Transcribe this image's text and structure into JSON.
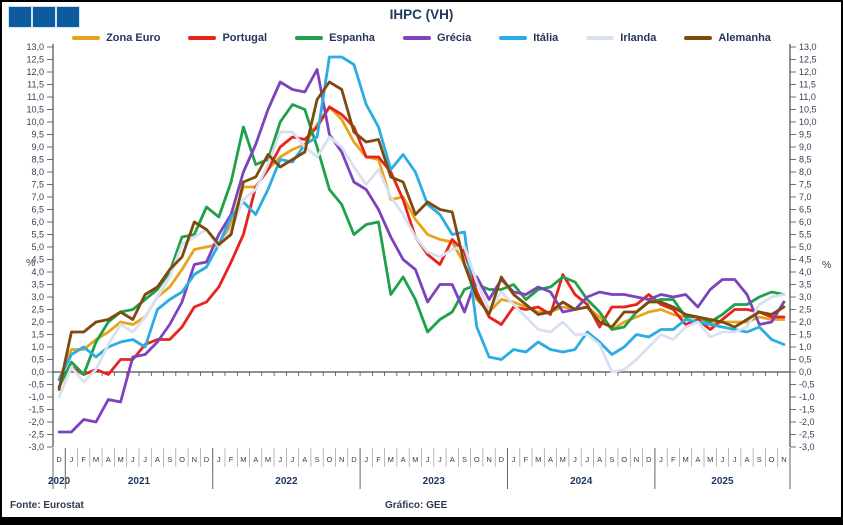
{
  "logo": {
    "bars": 3,
    "bar_color": "#0E5A9E",
    "gap_color": "#CDE4F2"
  },
  "footer": {
    "source": "Fonte: Eurostat",
    "credit": "Gráfico: GEE"
  },
  "chart_data": {
    "type": "line",
    "title": "IHPC (VH)",
    "ylabel_left": "%",
    "ylabel_right": "%",
    "ylim": [
      -3.0,
      13.0
    ],
    "ytick_step": 0.5,
    "grid": false,
    "legend_position": "top",
    "ytick_labels": [
      "13,0",
      "12,5",
      "12,0",
      "11,5",
      "11,0",
      "10,5",
      "10,0",
      "9,5",
      "9,0",
      "8,5",
      "8,0",
      "7,5",
      "7,0",
      "6,5",
      "6,0",
      "5,5",
      "5,0",
      "4,5",
      "4,0",
      "3,5",
      "3,0",
      "2,5",
      "2,0",
      "1,5",
      "1,0",
      "0,5",
      "0,0",
      "-0,5",
      "-1,0",
      "-1,5",
      "-2,0",
      "-2,5",
      "-3,0"
    ],
    "x_months": [
      "D",
      "J",
      "F",
      "M",
      "A",
      "M",
      "J",
      "J",
      "A",
      "S",
      "O",
      "N",
      "D",
      "J",
      "F",
      "M",
      "A",
      "M",
      "J",
      "J",
      "A",
      "S",
      "O",
      "N",
      "D",
      "J",
      "F",
      "M",
      "A",
      "M",
      "J",
      "J",
      "A",
      "S",
      "O",
      "N",
      "D",
      "J",
      "F",
      "M",
      "A",
      "M",
      "J",
      "J",
      "A",
      "S",
      "O",
      "N",
      "D",
      "J",
      "F",
      "M",
      "A",
      "M",
      "J",
      "J",
      "A",
      "S",
      "O",
      "N"
    ],
    "x_years": [
      {
        "label": "2020",
        "months": 1
      },
      {
        "label": "2021",
        "months": 12
      },
      {
        "label": "2022",
        "months": 12
      },
      {
        "label": "2023",
        "months": 12
      },
      {
        "label": "2024",
        "months": 12
      },
      {
        "label": "2025",
        "months": 11
      }
    ],
    "series": [
      {
        "name": "Zona Euro",
        "color": "#E8A51B",
        "values": [
          -0.3,
          0.9,
          0.9,
          1.3,
          1.6,
          2.0,
          1.9,
          2.2,
          3.0,
          3.4,
          4.1,
          4.9,
          5.0,
          5.1,
          5.9,
          7.4,
          7.4,
          8.1,
          8.6,
          8.9,
          9.1,
          9.9,
          10.6,
          10.1,
          9.2,
          8.6,
          8.5,
          6.9,
          7.0,
          6.1,
          5.5,
          5.3,
          5.2,
          4.3,
          2.9,
          2.4,
          2.9,
          2.8,
          2.6,
          2.4,
          2.4,
          2.6,
          2.5,
          2.6,
          2.2,
          1.7,
          2.0,
          2.2,
          2.4,
          2.5,
          2.3,
          2.2,
          2.2,
          1.9,
          2.0,
          2.0,
          2.0,
          2.2,
          2.1,
          2.1
        ]
      },
      {
        "name": "Portugal",
        "color": "#E8231E",
        "values": [
          -0.3,
          0.2,
          -0.1,
          0.1,
          -0.1,
          0.5,
          0.5,
          1.1,
          1.3,
          1.3,
          1.8,
          2.6,
          2.8,
          3.4,
          4.4,
          5.5,
          7.4,
          8.1,
          9.0,
          9.4,
          9.3,
          9.8,
          10.6,
          10.3,
          9.8,
          8.6,
          8.6,
          8.0,
          6.9,
          5.4,
          4.7,
          4.3,
          5.3,
          4.8,
          3.2,
          2.2,
          1.9,
          2.6,
          2.5,
          2.6,
          2.3,
          3.9,
          3.1,
          2.7,
          1.8,
          2.6,
          2.6,
          2.7,
          3.1,
          2.7,
          2.5,
          1.9,
          2.1,
          1.7,
          2.1,
          2.5,
          2.5,
          2.4,
          2.2,
          2.2
        ]
      },
      {
        "name": "Espanha",
        "color": "#1FA04B",
        "values": [
          -0.6,
          0.4,
          -0.1,
          1.2,
          2.0,
          2.4,
          2.5,
          2.9,
          3.3,
          4.0,
          5.4,
          5.5,
          6.6,
          6.2,
          7.6,
          9.8,
          8.3,
          8.5,
          10.0,
          10.7,
          10.5,
          9.0,
          7.3,
          6.7,
          5.5,
          5.9,
          6.0,
          3.1,
          3.8,
          2.9,
          1.6,
          2.1,
          2.4,
          3.3,
          3.5,
          3.3,
          3.3,
          3.5,
          2.9,
          3.3,
          3.4,
          3.8,
          3.6,
          2.9,
          2.4,
          1.7,
          1.8,
          2.4,
          2.8,
          2.9,
          2.9,
          2.2,
          2.2,
          2.0,
          2.3,
          2.7,
          2.7,
          3.0,
          3.2,
          3.1
        ]
      },
      {
        "name": "Grécia",
        "color": "#7D43BC",
        "values": [
          -2.4,
          -2.4,
          -1.9,
          -2.0,
          -1.1,
          -1.2,
          0.6,
          0.7,
          1.2,
          1.9,
          2.8,
          4.3,
          4.4,
          5.5,
          6.3,
          8.0,
          9.1,
          10.5,
          11.6,
          11.3,
          11.2,
          12.1,
          9.5,
          8.8,
          7.6,
          7.3,
          6.5,
          5.4,
          4.5,
          4.1,
          2.8,
          3.5,
          3.5,
          2.4,
          3.8,
          2.9,
          3.7,
          3.2,
          3.1,
          3.4,
          3.2,
          2.4,
          2.5,
          3.0,
          3.2,
          3.1,
          3.1,
          3.0,
          2.9,
          3.1,
          3.0,
          3.1,
          2.6,
          3.3,
          3.7,
          3.7,
          3.1,
          1.9,
          2.0,
          2.8
        ]
      },
      {
        "name": "Itália",
        "color": "#2BACE2",
        "values": [
          -0.3,
          0.7,
          1.0,
          0.6,
          1.0,
          1.2,
          1.3,
          1.0,
          2.5,
          2.9,
          3.2,
          3.9,
          4.2,
          5.1,
          6.2,
          6.8,
          6.3,
          7.3,
          8.5,
          8.4,
          9.1,
          9.4,
          12.6,
          12.6,
          12.3,
          10.7,
          9.8,
          8.1,
          8.7,
          8.0,
          6.7,
          6.3,
          5.5,
          5.6,
          1.8,
          0.6,
          0.5,
          0.9,
          0.8,
          1.2,
          0.9,
          0.8,
          0.9,
          1.6,
          1.2,
          0.7,
          1.0,
          1.5,
          1.4,
          1.7,
          1.7,
          2.1,
          2.0,
          1.9,
          1.8,
          1.7,
          1.6,
          1.8,
          1.3,
          1.1
        ]
      },
      {
        "name": "Irlanda",
        "color": "#D9E1F0",
        "values": [
          -1.0,
          0.2,
          -0.4,
          0.1,
          1.1,
          1.9,
          1.6,
          2.2,
          3.0,
          3.8,
          5.1,
          5.4,
          5.7,
          5.0,
          5.7,
          6.9,
          7.3,
          8.3,
          9.6,
          9.6,
          9.0,
          8.6,
          9.4,
          9.0,
          8.2,
          7.5,
          8.1,
          7.0,
          6.3,
          5.4,
          4.8,
          4.6,
          4.9,
          5.0,
          3.6,
          2.5,
          3.2,
          2.7,
          2.2,
          1.7,
          1.6,
          2.0,
          1.5,
          1.5,
          1.1,
          0.0,
          0.1,
          0.5,
          1.0,
          1.5,
          1.3,
          1.8,
          2.0,
          1.4,
          1.6,
          1.6,
          1.8,
          2.7,
          3.0,
          3.1
        ]
      },
      {
        "name": "Alemanha",
        "color": "#7E4A0F",
        "values": [
          -0.7,
          1.6,
          1.6,
          2.0,
          2.1,
          2.4,
          2.1,
          3.1,
          3.4,
          4.1,
          4.6,
          6.0,
          5.7,
          5.1,
          5.5,
          7.6,
          7.8,
          8.7,
          8.2,
          8.5,
          8.8,
          10.9,
          11.6,
          11.3,
          9.6,
          9.2,
          9.3,
          7.8,
          7.6,
          6.3,
          6.8,
          6.5,
          6.4,
          4.3,
          3.0,
          2.3,
          3.8,
          3.1,
          2.7,
          2.3,
          2.4,
          2.8,
          2.5,
          2.6,
          2.0,
          1.8,
          2.4,
          2.4,
          2.8,
          2.8,
          2.6,
          2.3,
          2.2,
          2.1,
          2.0,
          1.8,
          2.1,
          2.4,
          2.3,
          2.6
        ]
      }
    ]
  }
}
